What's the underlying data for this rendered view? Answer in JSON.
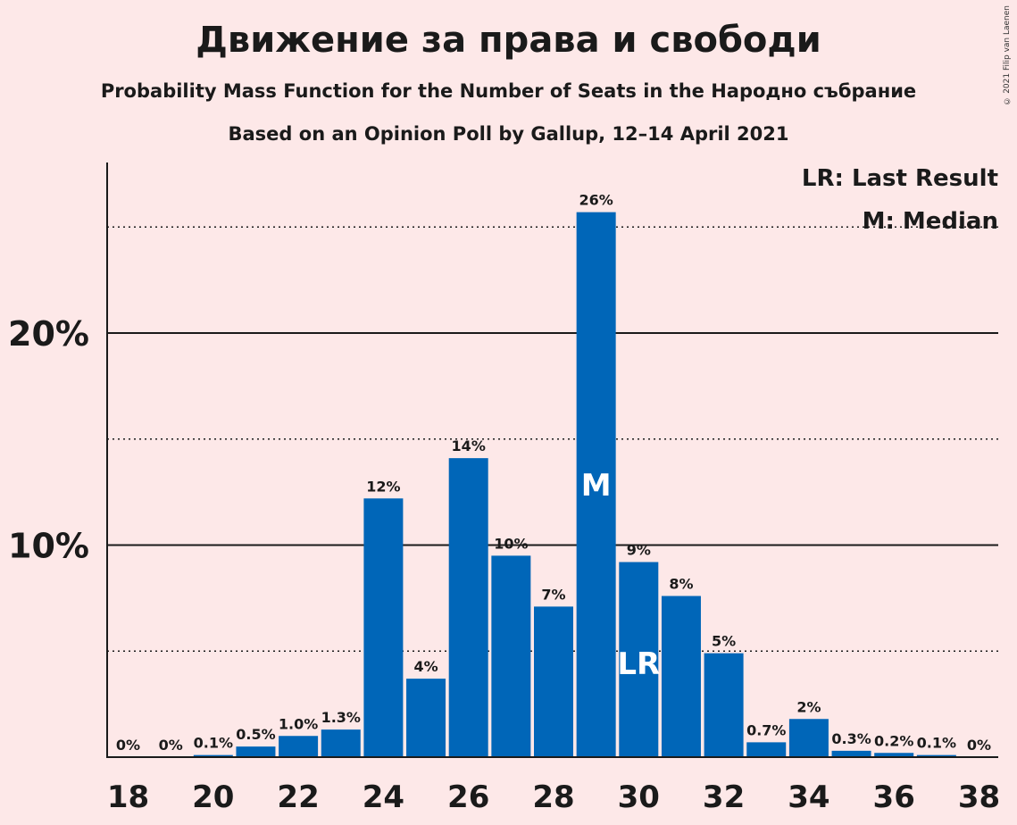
{
  "title": "Движение за права и свободи",
  "subtitle1": "Probability Mass Function for the Number of Seats in the Народно събрание",
  "subtitle2": "Based on an Opinion Poll by Gallup, 12–14 April 2021",
  "copyright": "© 2021 Filip van Laenen",
  "legend": {
    "lr": "LR: Last Result",
    "m": "M: Median"
  },
  "colors": {
    "bar": "#0066b8",
    "background": "#fde8e8"
  },
  "chart_data": {
    "type": "bar",
    "x": [
      18,
      19,
      20,
      21,
      22,
      23,
      24,
      25,
      26,
      27,
      28,
      29,
      30,
      31,
      32,
      33,
      34,
      35,
      36,
      37,
      38
    ],
    "values": [
      0,
      0,
      0.1,
      0.5,
      1.0,
      1.3,
      12.2,
      3.7,
      14.1,
      9.5,
      7.1,
      25.7,
      9.2,
      7.6,
      4.9,
      0.7,
      1.8,
      0.3,
      0.2,
      0.1,
      0
    ],
    "value_labels": [
      "0%",
      "0%",
      "0.1%",
      "0.5%",
      "1.0%",
      "1.3%",
      "12%",
      "4%",
      "14%",
      "10%",
      "7%",
      "26%",
      "9%",
      "8%",
      "5%",
      "0.7%",
      "2%",
      "0.3%",
      "0.2%",
      "0.1%",
      "0%"
    ],
    "x_tick_labels": [
      "18",
      "20",
      "22",
      "24",
      "26",
      "28",
      "30",
      "32",
      "34",
      "36",
      "38"
    ],
    "y_tick_labels": [
      "10%",
      "20%"
    ],
    "ylim": [
      0,
      28
    ],
    "grid": "solid at 10% and 20%, dotted at 5%, 15%, 25%",
    "median_seat": 29,
    "median_label": "M",
    "last_result_seat": 30,
    "last_result_label": "LR"
  }
}
